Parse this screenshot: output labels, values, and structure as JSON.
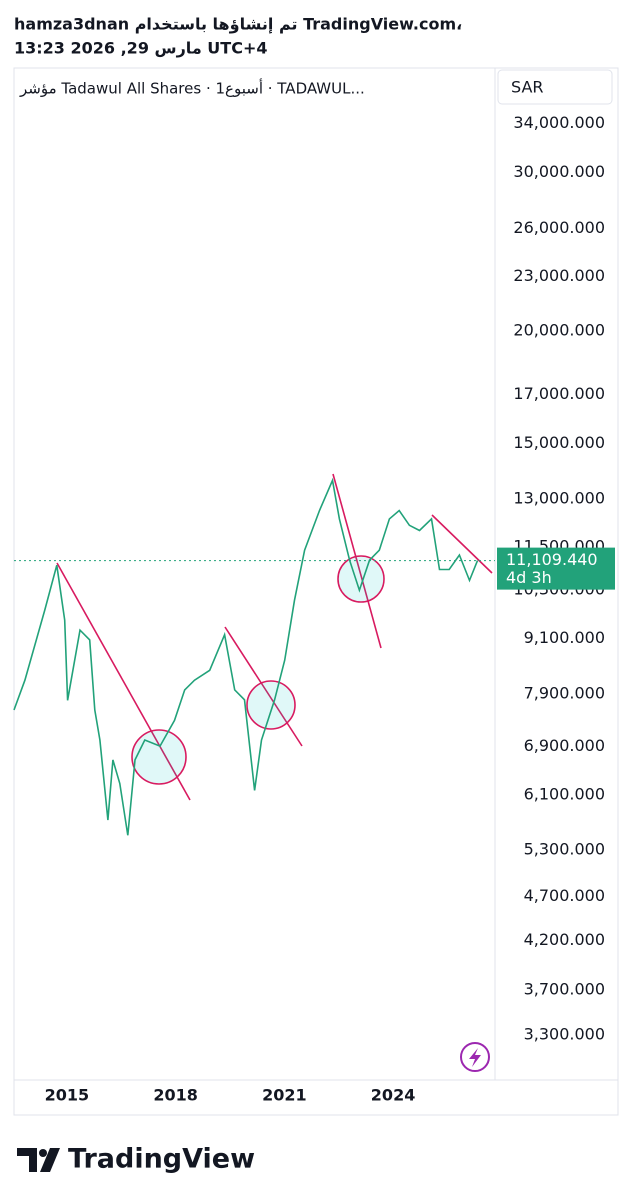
{
  "header": {
    "line1": "hamza3dnan تم إنشاؤها باستخدام TradingView.com،",
    "line2": "13:23 2026 ,29 مارس UTC+4"
  },
  "chart_data": {
    "type": "line",
    "title": "مؤشر Tadawul All Shares · 1أسبوع · TADAWUL...",
    "currency": "SAR",
    "x": [
      2013.54,
      2013.84,
      2014.39,
      2014.72,
      2014.94,
      2015.02,
      2015.36,
      2015.63,
      2015.77,
      2015.91,
      2016.13,
      2016.27,
      2016.46,
      2016.68,
      2016.88,
      2017.15,
      2017.57,
      2017.97,
      2018.25,
      2018.52,
      2018.94,
      2019.35,
      2019.63,
      2019.9,
      2020.18,
      2020.37,
      2020.73,
      2021.01,
      2021.28,
      2021.56,
      2021.97,
      2022.33,
      2022.52,
      2022.8,
      2023.07,
      2023.35,
      2023.62,
      2023.9,
      2024.17,
      2024.45,
      2024.73,
      2025.06,
      2025.28,
      2025.55,
      2025.83,
      2026.11,
      2026.33
    ],
    "series": [
      {
        "name": "Tadawul All Shares",
        "color": "#22a27a",
        "values": [
          7580,
          8180,
          9790,
          10980,
          9540,
          7770,
          9300,
          9070,
          7580,
          7020,
          5720,
          6670,
          6280,
          5500,
          6670,
          7020,
          6910,
          7380,
          7980,
          8180,
          8390,
          9190,
          7980,
          7780,
          6170,
          7020,
          7780,
          8610,
          10040,
          11410,
          12630,
          13640,
          12360,
          11120,
          10300,
          11120,
          11410,
          12360,
          12630,
          12160,
          12000,
          12360,
          10860,
          10860,
          11270,
          10560,
          11109.44
        ]
      }
    ],
    "last_price": {
      "value": 11109.44,
      "label": "11,109.440"
    },
    "countdown": "4d 3h",
    "xlim": [
      2013.54,
      2026.73
    ],
    "xticks": [
      2015,
      2018,
      2021,
      2024
    ],
    "ylim": [
      2940,
      39200
    ],
    "log_scale": true,
    "yticks": [
      {
        "value": 3300,
        "label": "3,300.000"
      },
      {
        "value": 3700,
        "label": "3,700.000"
      },
      {
        "value": 4200,
        "label": "4,200.000"
      },
      {
        "value": 4700,
        "label": "4,700.000"
      },
      {
        "value": 5300,
        "label": "5,300.000"
      },
      {
        "value": 6100,
        "label": "6,100.000"
      },
      {
        "value": 6900,
        "label": "6,900.000"
      },
      {
        "value": 7900,
        "label": "7,900.000"
      },
      {
        "value": 9100,
        "label": "9,100.000"
      },
      {
        "value": 10300,
        "label": "10,300.000"
      },
      {
        "value": 11500,
        "label": "11,500.000"
      },
      {
        "value": 13000,
        "label": "13,000.000"
      },
      {
        "value": 15000,
        "label": "15,000.000"
      },
      {
        "value": 17000,
        "label": "17,000.000"
      },
      {
        "value": 20000,
        "label": "20,000.000"
      },
      {
        "value": 23000,
        "label": "23,000.000"
      },
      {
        "value": 26000,
        "label": "26,000.000"
      },
      {
        "value": 30000,
        "label": "30,000.000"
      },
      {
        "value": 34000,
        "label": "34,000.000"
      }
    ],
    "grid": false
  },
  "footer": {
    "brand": "TradingView"
  }
}
